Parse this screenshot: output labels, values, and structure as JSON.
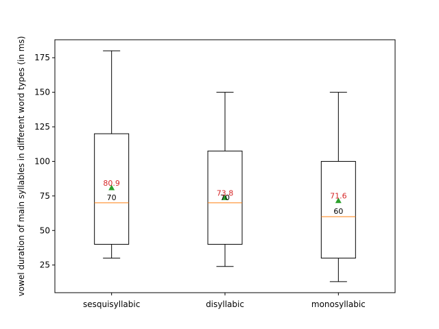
{
  "chart_data": {
    "type": "boxplot",
    "title": "",
    "xlabel": "",
    "ylabel": "vowel duration of main syllables in different word types (in ms)",
    "ylim": [
      5,
      188
    ],
    "yticks": [
      25,
      50,
      75,
      100,
      125,
      150,
      175
    ],
    "grid": false,
    "categories": [
      "sesquisyllabic",
      "disyllabic",
      "monosyllabic"
    ],
    "boxes": [
      {
        "category": "sesquisyllabic",
        "whisker_low": 30,
        "q1": 40,
        "median": 70,
        "q3": 120,
        "whisker_high": 180,
        "mean": 80.9,
        "median_label": "70",
        "mean_label": "80.9"
      },
      {
        "category": "disyllabic",
        "whisker_low": 24,
        "q1": 40,
        "median": 70,
        "q3": 107.5,
        "whisker_high": 150,
        "mean": 73.8,
        "median_label": "70",
        "mean_label": "73.8"
      },
      {
        "category": "monosyllabic",
        "whisker_low": 13,
        "q1": 30,
        "median": 60,
        "q3": 100,
        "whisker_high": 150,
        "mean": 71.6,
        "median_label": "60",
        "mean_label": "71.6"
      }
    ],
    "colors": {
      "box": "#000000",
      "median_line": "#ff7f0e",
      "mean_marker": "#2ca02c",
      "mean_text": "#d62728"
    }
  }
}
